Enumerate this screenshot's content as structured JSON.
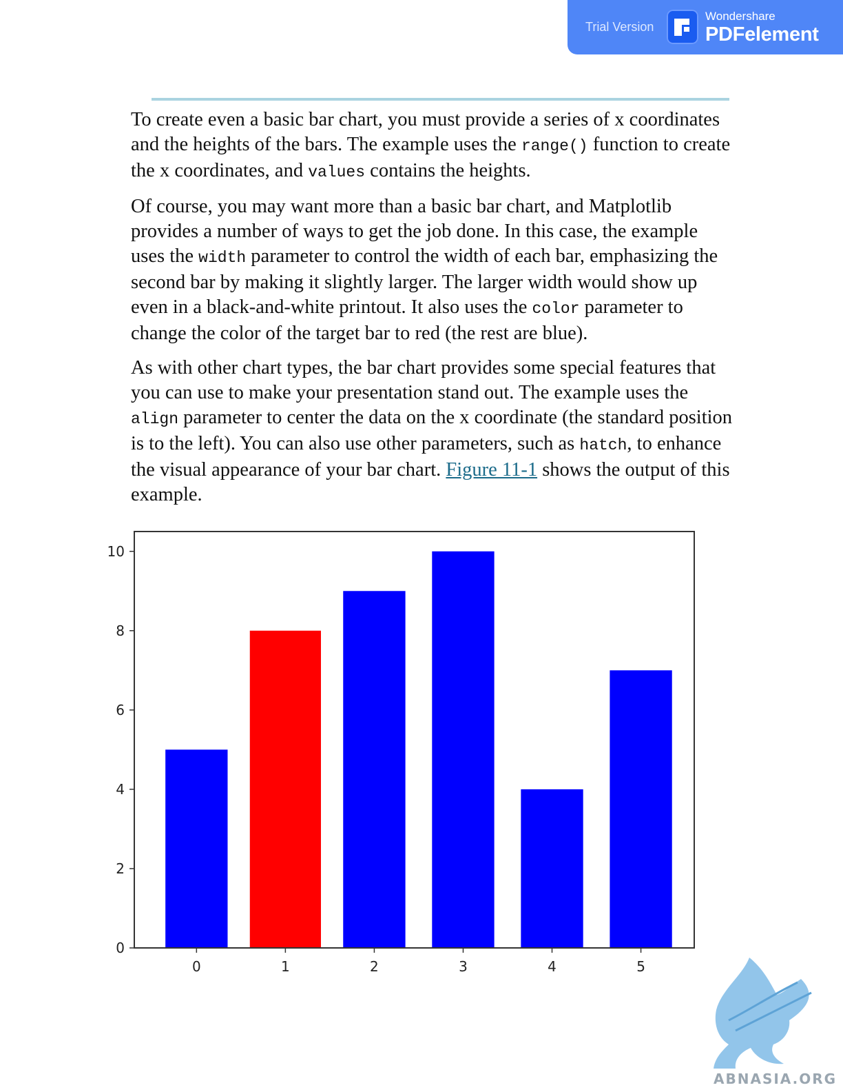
{
  "banner": {
    "trial": "Trial Version",
    "brand_small": "Wondershare",
    "brand_big": "PDFelement"
  },
  "para1": {
    "t1": "To create even a basic bar chart, you must provide a series of x coordinates and the heights of the bars. The example uses the ",
    "c1": "range()",
    "t2": " function to create the x coordinates, and ",
    "c2": "values",
    "t3": " contains the heights."
  },
  "para2": {
    "t1": "Of course, you may want more than a basic bar chart, and Matplotlib provides a number of ways to get the job done. In this case, the example uses the ",
    "c1": "width",
    "t2": " parameter to control the width of each bar, emphasizing the second bar by making it slightly larger. The larger width would show up even in a black-and-white printout. It also uses the ",
    "c2": "color",
    "t3": " parameter to change the color of the target bar to red (the rest are blue)."
  },
  "para3": {
    "t1": "As with other chart types, the bar chart provides some special features that you can use to make your presentation stand out. The example uses the ",
    "c1": "align",
    "t2": " parameter to center the data on the x coordinate (the standard position is to the left). You can also use other parameters, such as ",
    "c2": "hatch",
    "t3": ", to enhance the visual appearance of your bar chart. ",
    "link": "Figure 11-1",
    "t4": " shows the output of this example."
  },
  "chart_data": {
    "type": "bar",
    "categories": [
      "0",
      "1",
      "2",
      "3",
      "4",
      "5"
    ],
    "values": [
      5,
      8,
      9,
      10,
      4,
      7
    ],
    "colors": [
      "#0000ff",
      "#ff0000",
      "#0000ff",
      "#0000ff",
      "#0000ff",
      "#0000ff"
    ],
    "widths": [
      0.7,
      0.8,
      0.7,
      0.7,
      0.7,
      0.7
    ],
    "align": "center",
    "xlim": [
      -0.7,
      5.6
    ],
    "ylim": [
      0,
      10.5
    ],
    "yticks": [
      0,
      2,
      4,
      6,
      8,
      10
    ],
    "title": "",
    "xlabel": "",
    "ylabel": "",
    "grid": false
  },
  "watermark": {
    "text": "ABNASIA.ORG"
  }
}
